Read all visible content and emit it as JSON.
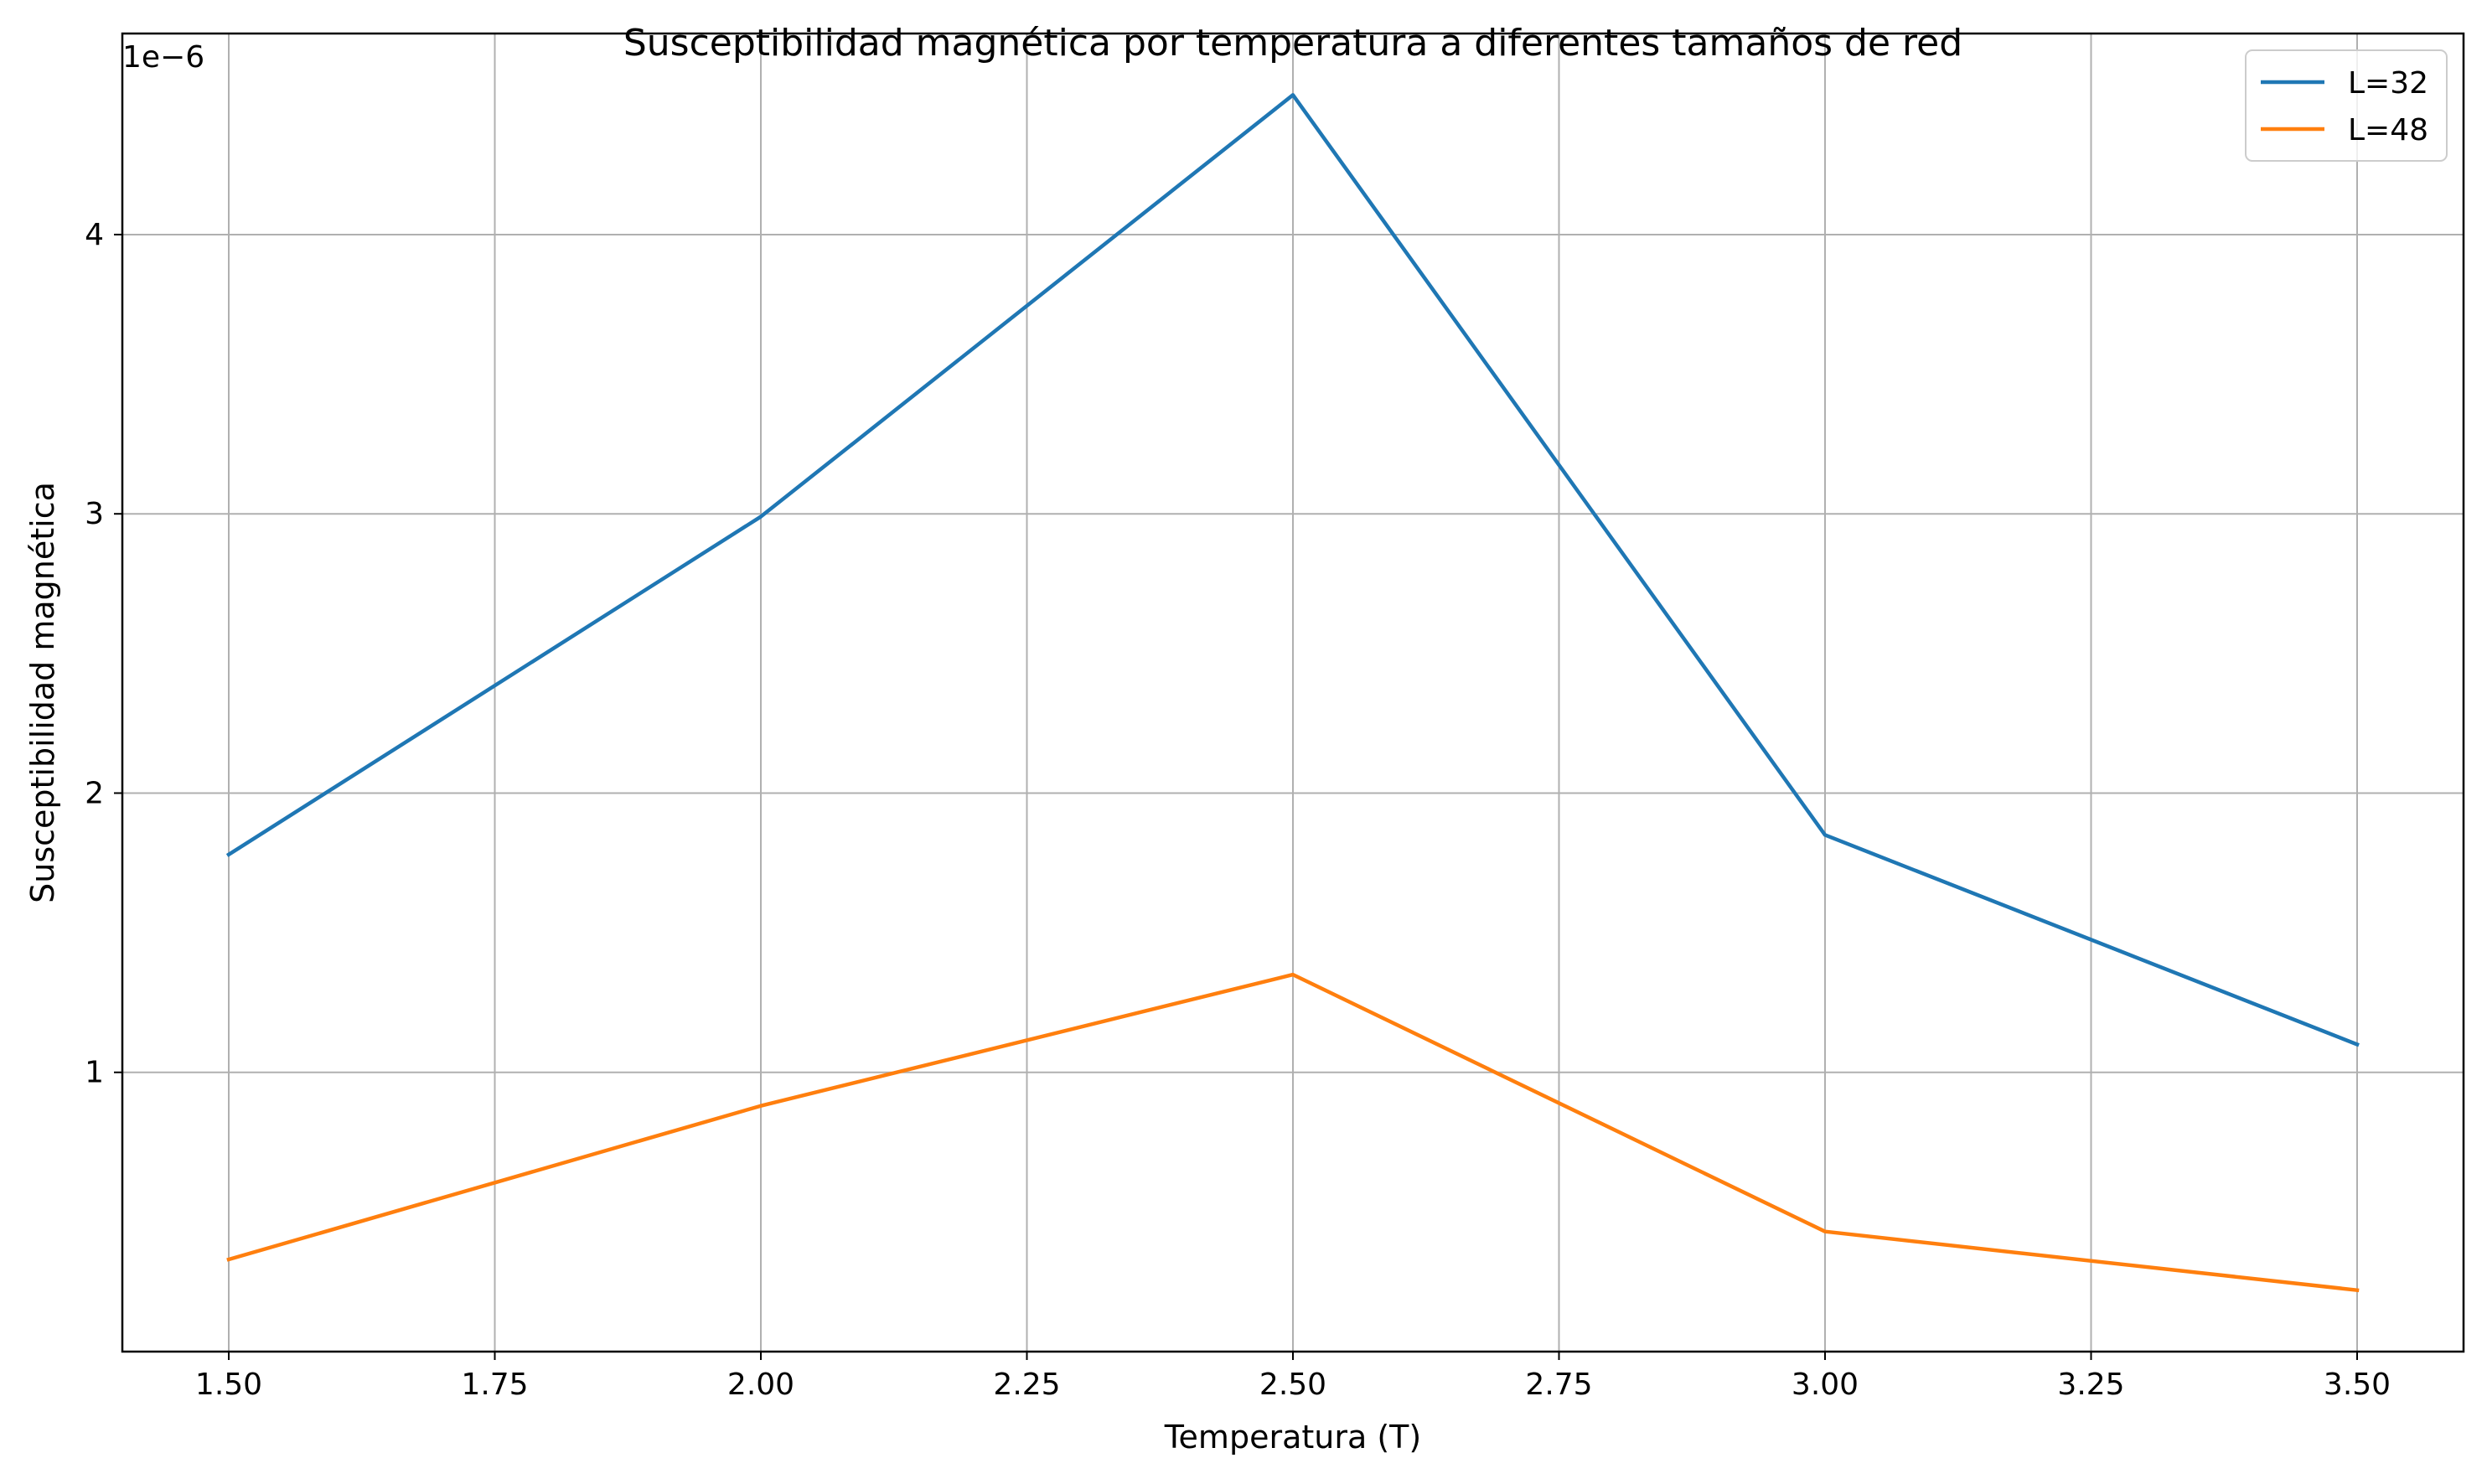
{
  "chart_data": {
    "type": "line",
    "title": "Susceptibilidad magnética por temperatura a diferentes tamaños de red",
    "xlabel": "Temperatura (T)",
    "ylabel": "Susceptibilidad magnética",
    "y_offset_label": "1e−6",
    "y_scale_factor": 1e-06,
    "x": [
      1.5,
      2.0,
      2.5,
      3.0,
      3.5
    ],
    "series": [
      {
        "name": "L=32",
        "color": "#1f77b4",
        "values": [
          1.78e-06,
          2.99e-06,
          4.5e-06,
          1.85e-06,
          1.1e-06
        ]
      },
      {
        "name": "L=48",
        "color": "#ff7f0e",
        "values": [
          3.3e-07,
          8.8e-07,
          1.35e-06,
          4.3e-07,
          2.2e-07
        ]
      }
    ],
    "xlim": [
      1.4,
      3.6
    ],
    "ylim": [
      0.0,
      4.72e-06
    ],
    "x_ticks": [
      "1.50",
      "1.75",
      "2.00",
      "2.25",
      "2.50",
      "2.75",
      "3.00",
      "3.25",
      "3.50"
    ],
    "y_ticks": [
      "1",
      "2",
      "3",
      "4"
    ],
    "grid": true,
    "legend_position": "top-right"
  }
}
